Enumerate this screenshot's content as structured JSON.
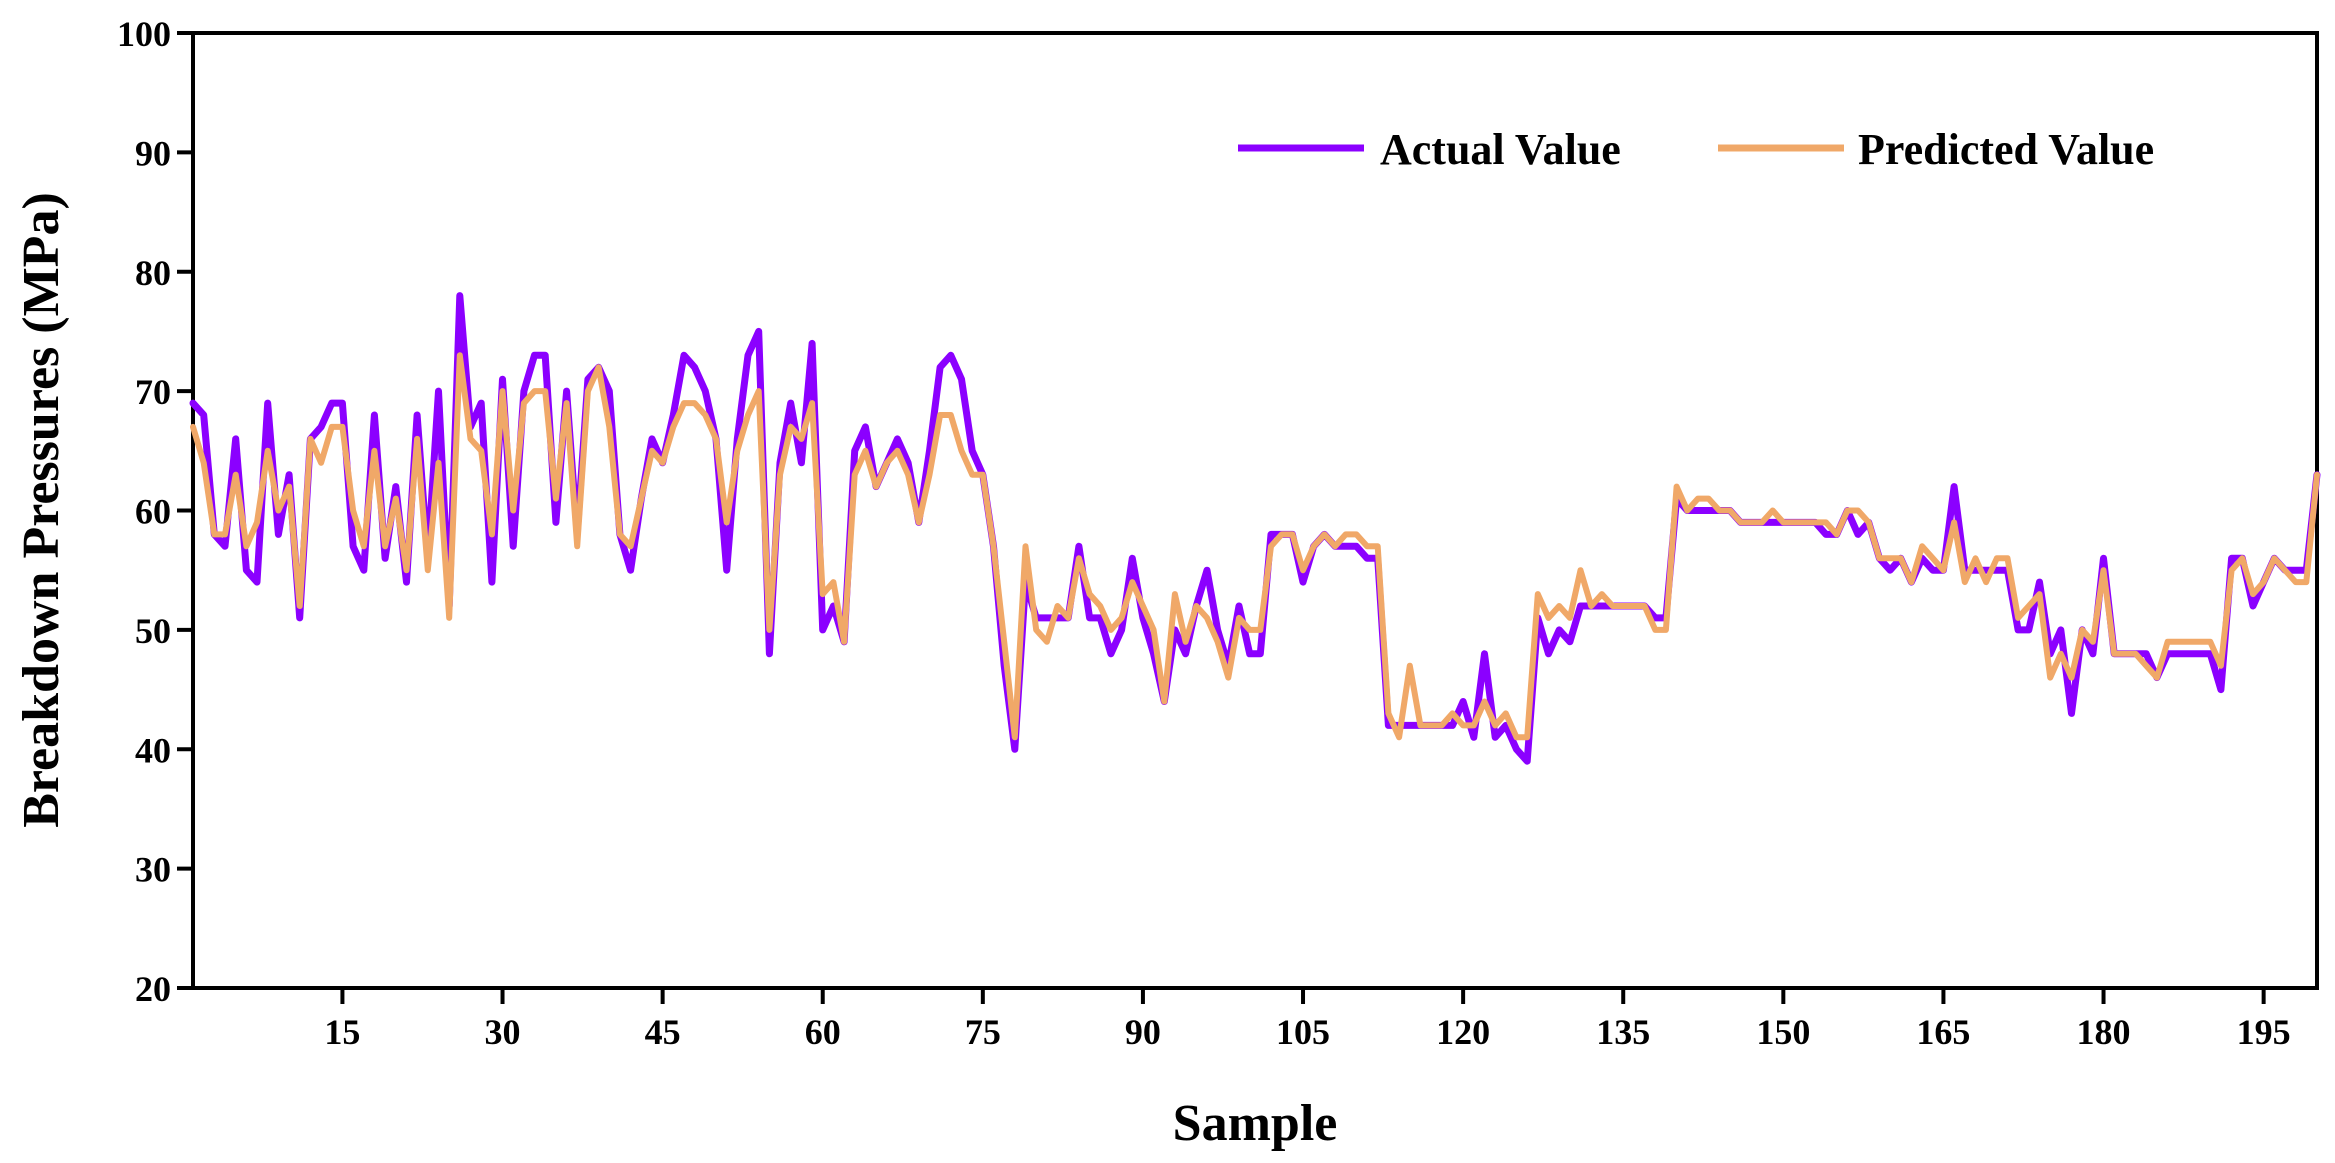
{
  "chart_data": {
    "type": "line",
    "title": "",
    "xlabel": "Sample",
    "ylabel": "Breakdown Pressures (MPa)",
    "xlim": [
      1,
      200
    ],
    "ylim": [
      20,
      100
    ],
    "xticks": [
      15,
      30,
      45,
      60,
      75,
      90,
      105,
      120,
      135,
      150,
      165,
      180,
      195
    ],
    "yticks": [
      20,
      30,
      40,
      50,
      60,
      70,
      80,
      90,
      100
    ],
    "grid": false,
    "legend_position": "top-right",
    "x": [
      1,
      2,
      3,
      4,
      5,
      6,
      7,
      8,
      9,
      10,
      11,
      12,
      13,
      14,
      15,
      16,
      17,
      18,
      19,
      20,
      21,
      22,
      23,
      24,
      25,
      26,
      27,
      28,
      29,
      30,
      31,
      32,
      33,
      34,
      35,
      36,
      37,
      38,
      39,
      40,
      41,
      42,
      43,
      44,
      45,
      46,
      47,
      48,
      49,
      50,
      51,
      52,
      53,
      54,
      55,
      56,
      57,
      58,
      59,
      60,
      61,
      62,
      63,
      64,
      65,
      66,
      67,
      68,
      69,
      70,
      71,
      72,
      73,
      74,
      75,
      76,
      77,
      78,
      79,
      80,
      81,
      82,
      83,
      84,
      85,
      86,
      87,
      88,
      89,
      90,
      91,
      92,
      93,
      94,
      95,
      96,
      97,
      98,
      99,
      100,
      101,
      102,
      103,
      104,
      105,
      106,
      107,
      108,
      109,
      110,
      111,
      112,
      113,
      114,
      115,
      116,
      117,
      118,
      119,
      120,
      121,
      122,
      123,
      124,
      125,
      126,
      127,
      128,
      129,
      130,
      131,
      132,
      133,
      134,
      135,
      136,
      137,
      138,
      139,
      140,
      141,
      142,
      143,
      144,
      145,
      146,
      147,
      148,
      149,
      150,
      151,
      152,
      153,
      154,
      155,
      156,
      157,
      158,
      159,
      160,
      161,
      162,
      163,
      164,
      165,
      166,
      167,
      168,
      169,
      170,
      171,
      172,
      173,
      174,
      175,
      176,
      177,
      178,
      179,
      180,
      181,
      182,
      183,
      184,
      185,
      186,
      187,
      188,
      189,
      190,
      191,
      192,
      193,
      194,
      195,
      196,
      197,
      198,
      199,
      200
    ],
    "series": [
      {
        "name": "Actual Value",
        "color": "#8B00FF",
        "values": [
          69,
          68,
          58,
          57,
          66,
          55,
          54,
          69,
          58,
          63,
          51,
          66,
          67,
          69,
          69,
          57,
          55,
          68,
          56,
          62,
          54,
          68,
          56,
          70,
          52,
          78,
          67,
          69,
          54,
          71,
          57,
          70,
          73,
          73,
          59,
          70,
          58,
          71,
          72,
          70,
          58,
          55,
          61,
          66,
          64,
          68,
          73,
          72,
          70,
          66,
          55,
          66,
          73,
          75,
          48,
          64,
          69,
          64,
          74,
          50,
          52,
          49,
          65,
          67,
          62,
          64,
          66,
          64,
          59,
          65,
          72,
          73,
          71,
          65,
          63,
          57,
          47,
          40,
          54,
          51,
          51,
          51,
          51,
          57,
          51,
          51,
          48,
          50,
          56,
          51,
          48,
          44,
          50,
          48,
          52,
          55,
          50,
          47,
          52,
          48,
          48,
          58,
          58,
          58,
          54,
          57,
          58,
          57,
          57,
          57,
          56,
          56,
          42,
          42,
          42,
          42,
          42,
          42,
          42,
          44,
          41,
          48,
          41,
          42,
          40,
          39,
          51,
          48,
          50,
          49,
          52,
          52,
          52,
          52,
          52,
          52,
          52,
          51,
          51,
          61,
          60,
          60,
          60,
          60,
          60,
          59,
          59,
          59,
          59,
          59,
          59,
          59,
          59,
          58,
          58,
          60,
          58,
          59,
          56,
          55,
          56,
          54,
          56,
          55,
          55,
          62,
          55,
          55,
          55,
          55,
          55,
          50,
          50,
          54,
          48,
          50,
          43,
          50,
          48,
          56,
          48,
          48,
          48,
          48,
          46,
          48,
          48,
          48,
          48,
          48,
          45,
          56,
          56,
          52,
          54,
          56,
          55,
          55,
          55,
          63
        ]
      },
      {
        "name": "Predicted Value",
        "color": "#F0A868",
        "values": [
          67,
          64,
          58,
          58,
          63,
          57,
          59,
          65,
          60,
          62,
          52,
          66,
          64,
          67,
          67,
          60,
          57,
          65,
          57,
          61,
          55,
          66,
          55,
          64,
          51,
          73,
          66,
          65,
          58,
          70,
          60,
          69,
          70,
          70,
          61,
          69,
          57,
          70,
          72,
          67,
          58,
          57,
          61,
          65,
          64,
          67,
          69,
          69,
          68,
          66,
          59,
          65,
          68,
          70,
          50,
          63,
          67,
          66,
          69,
          53,
          54,
          49,
          63,
          65,
          62,
          64,
          65,
          63,
          59,
          63,
          68,
          68,
          65,
          63,
          63,
          57,
          49,
          41,
          57,
          50,
          49,
          52,
          51,
          56,
          53,
          52,
          50,
          51,
          54,
          52,
          50,
          44,
          53,
          49,
          52,
          51,
          49,
          46,
          51,
          50,
          50,
          57,
          58,
          58,
          55,
          57,
          58,
          57,
          58,
          58,
          57,
          57,
          43,
          41,
          47,
          42,
          42,
          42,
          43,
          42,
          42,
          44,
          42,
          43,
          41,
          41,
          53,
          51,
          52,
          51,
          55,
          52,
          53,
          52,
          52,
          52,
          52,
          50,
          50,
          62,
          60,
          61,
          61,
          60,
          60,
          59,
          59,
          59,
          60,
          59,
          59,
          59,
          59,
          59,
          58,
          60,
          60,
          59,
          56,
          56,
          56,
          54,
          57,
          56,
          55,
          59,
          54,
          56,
          54,
          56,
          56,
          51,
          52,
          53,
          46,
          48,
          46,
          50,
          49,
          55,
          48,
          48,
          48,
          47,
          46,
          49,
          49,
          49,
          49,
          49,
          47,
          55,
          56,
          53,
          54,
          56,
          55,
          54,
          54,
          63
        ]
      }
    ]
  }
}
